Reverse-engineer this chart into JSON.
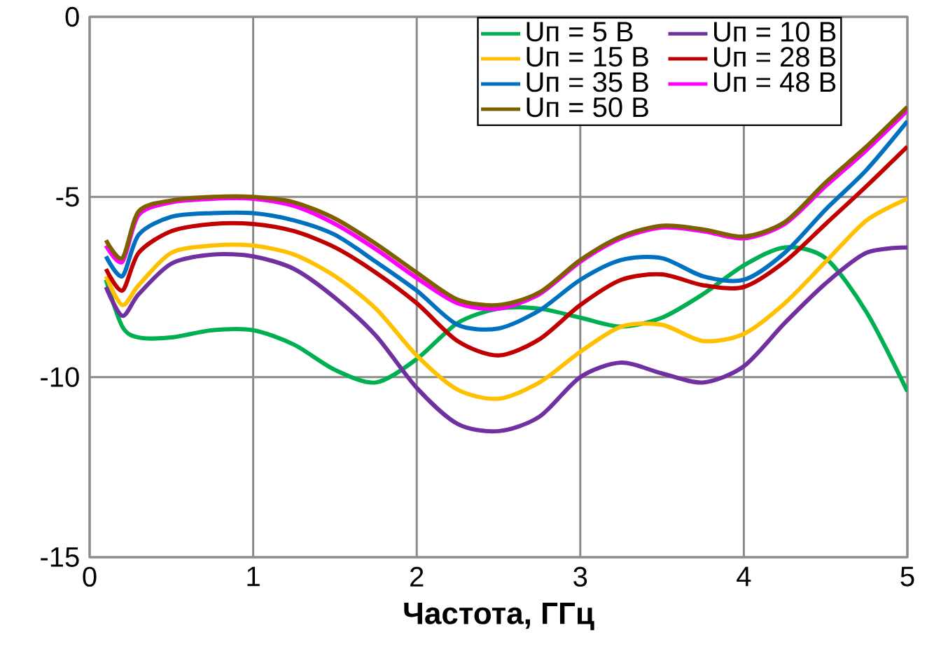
{
  "chart_data": {
    "type": "line",
    "xlabel": "Частота, ГГц",
    "x": [
      0.1,
      0.2,
      0.3,
      0.5,
      0.75,
      1.0,
      1.25,
      1.5,
      1.75,
      2.0,
      2.25,
      2.5,
      2.75,
      3.0,
      3.25,
      3.5,
      3.75,
      4.0,
      4.25,
      4.5,
      4.75,
      5.0
    ],
    "series": [
      {
        "name": "Uп = 5 В",
        "color": "#00b050",
        "values": [
          -7.3,
          -8.6,
          -8.9,
          -8.9,
          -8.7,
          -8.7,
          -9.1,
          -9.8,
          -10.15,
          -9.5,
          -8.5,
          -8.1,
          -8.1,
          -8.35,
          -8.6,
          -8.35,
          -7.7,
          -6.9,
          -6.4,
          -6.7,
          -8.2,
          -10.4
        ]
      },
      {
        "name": "Uп = 10 В",
        "color": "#7030a0",
        "values": [
          -7.5,
          -8.3,
          -7.7,
          -6.85,
          -6.6,
          -6.65,
          -7.0,
          -7.8,
          -8.85,
          -10.3,
          -11.3,
          -11.5,
          -11.1,
          -10.0,
          -9.6,
          -9.9,
          -10.15,
          -9.7,
          -8.5,
          -7.4,
          -6.55,
          -6.4
        ]
      },
      {
        "name": "Uп = 15 В",
        "color": "#ffc000",
        "values": [
          -7.2,
          -8.0,
          -7.45,
          -6.55,
          -6.35,
          -6.35,
          -6.6,
          -7.2,
          -8.1,
          -9.4,
          -10.35,
          -10.6,
          -10.15,
          -9.3,
          -8.6,
          -8.55,
          -9.0,
          -8.8,
          -7.95,
          -6.8,
          -5.65,
          -5.05
        ]
      },
      {
        "name": "Uп = 28 В",
        "color": "#c00000",
        "values": [
          -7.0,
          -7.6,
          -6.55,
          -5.95,
          -5.75,
          -5.75,
          -5.95,
          -6.4,
          -7.1,
          -7.95,
          -9.0,
          -9.4,
          -8.95,
          -8.0,
          -7.3,
          -7.15,
          -7.45,
          -7.5,
          -6.8,
          -5.75,
          -4.7,
          -3.6
        ]
      },
      {
        "name": "Uп = 35 В",
        "color": "#0070c0",
        "values": [
          -6.65,
          -7.2,
          -6.05,
          -5.55,
          -5.45,
          -5.45,
          -5.65,
          -6.05,
          -6.8,
          -7.6,
          -8.55,
          -8.65,
          -8.15,
          -7.3,
          -6.75,
          -6.7,
          -7.2,
          -7.3,
          -6.55,
          -5.35,
          -4.25,
          -2.9
        ]
      },
      {
        "name": "Uп = 48 В",
        "color": "#ff00ff",
        "values": [
          -6.35,
          -6.8,
          -5.5,
          -5.15,
          -5.05,
          -5.05,
          -5.25,
          -5.75,
          -6.45,
          -7.25,
          -7.95,
          -8.1,
          -7.7,
          -6.8,
          -6.15,
          -5.85,
          -5.95,
          -6.15,
          -5.75,
          -4.7,
          -3.7,
          -2.6
        ]
      },
      {
        "name": "Uп = 50 В",
        "color": "#7f6000",
        "values": [
          -6.2,
          -6.7,
          -5.4,
          -5.1,
          -5.0,
          -5.0,
          -5.15,
          -5.6,
          -6.3,
          -7.1,
          -7.85,
          -8.0,
          -7.65,
          -6.75,
          -6.1,
          -5.8,
          -5.9,
          -6.1,
          -5.7,
          -4.6,
          -3.6,
          -2.5
        ]
      }
    ],
    "xlim": [
      0,
      5
    ],
    "ylim": [
      -15,
      0
    ],
    "xticks": [
      0,
      1,
      2,
      3,
      4,
      5
    ],
    "yticks": [
      -15,
      -10,
      -5,
      0
    ],
    "grid": true,
    "legend": "top right",
    "marker": "none",
    "line_style": "solid"
  }
}
